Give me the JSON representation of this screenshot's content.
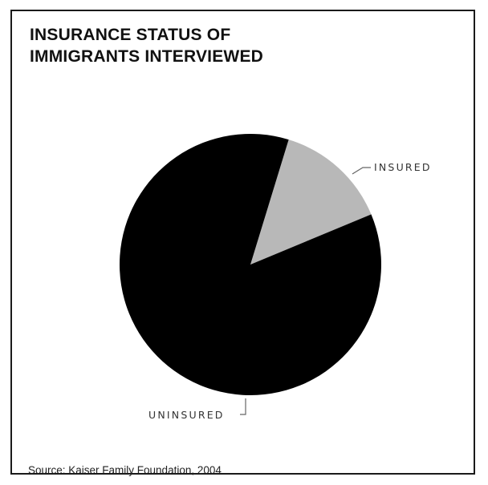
{
  "chart_data": {
    "type": "pie",
    "title": [
      "INSURANCE STATUS OF",
      "IMMIGRANTS INTERVIEWED"
    ],
    "slices": [
      {
        "label": "INSURED",
        "value": 14,
        "color": "#b8b8b8"
      },
      {
        "label": "UNINSURED",
        "value": 86,
        "color": "#000000"
      }
    ],
    "source": "Source: Kaiser Family Foundation, 2004"
  }
}
